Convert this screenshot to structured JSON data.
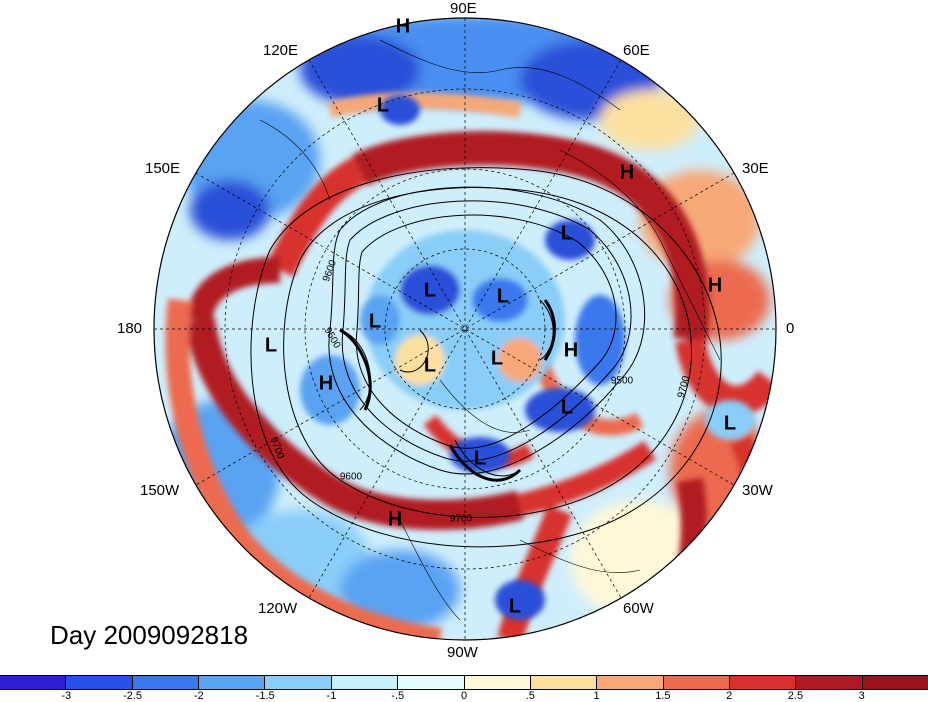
{
  "title": "Day 2009092818",
  "longitude_labels": {
    "n90e": "90E",
    "n120e": "120E",
    "n60e": "60E",
    "n150e": "150E",
    "n30e": "30E",
    "n180": "180",
    "n0": "0",
    "n150w": "150W",
    "n30w": "30W",
    "n120w": "120W",
    "n60w": "60W",
    "n90w": "90W"
  },
  "pressure_centers": [
    {
      "type": "H"
    },
    {
      "type": "L"
    },
    {
      "type": "H"
    },
    {
      "type": "L"
    },
    {
      "type": "H"
    },
    {
      "type": "L"
    },
    {
      "type": "L"
    },
    {
      "type": "L"
    },
    {
      "type": "L"
    },
    {
      "type": "H"
    },
    {
      "type": "H"
    },
    {
      "type": "L"
    },
    {
      "type": "L"
    },
    {
      "type": "L"
    },
    {
      "type": "L"
    },
    {
      "type": "L"
    },
    {
      "type": "H"
    },
    {
      "type": "L"
    }
  ],
  "contour_labels": [
    "9600",
    "9500",
    "9500",
    "9700",
    "9700",
    "9600",
    "9700"
  ],
  "colorbar": {
    "ticks": [
      "-3",
      "-2.5",
      "-2",
      "-1.5",
      "-1",
      "-.5",
      "0",
      ".5",
      "1",
      "1.5",
      "2",
      "2.5",
      "3"
    ],
    "colors": [
      "#2c20d0",
      "#2850e6",
      "#3a78ee",
      "#5aa2f2",
      "#8acdf8",
      "#c6f0fc",
      "#e4fbff",
      "#fff8d8",
      "#fde0a0",
      "#f6a878",
      "#ec6a50",
      "#d8302e",
      "#b01a24",
      "#981220"
    ]
  },
  "field_colors": {
    "ocean_blue": "#5aa2f2",
    "ring_red": "#b01a24",
    "pale": "#e4fbff"
  }
}
